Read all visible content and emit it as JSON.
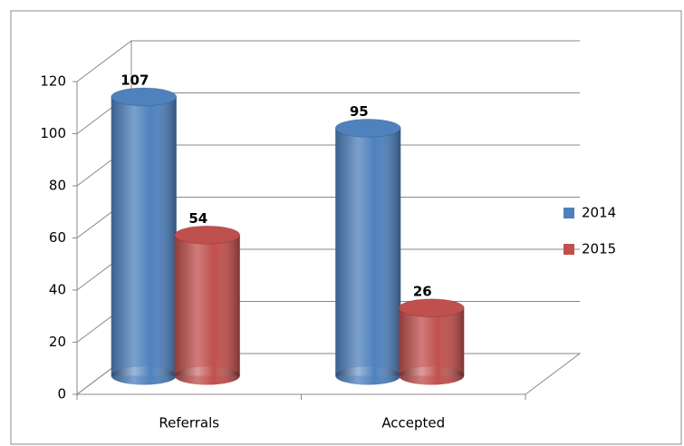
{
  "chart_data": {
    "type": "bar3d",
    "categories": [
      "Referrals",
      "Accepted"
    ],
    "series": [
      {
        "name": "2014",
        "color": "#4f81bd",
        "values": [
          107,
          95
        ]
      },
      {
        "name": "2015",
        "color": "#c0504d",
        "values": [
          54,
          26
        ]
      }
    ],
    "ylim": [
      0,
      120
    ],
    "yticks": [
      0,
      20,
      40,
      60,
      80,
      100,
      120
    ],
    "grid": true,
    "legend": "right"
  }
}
